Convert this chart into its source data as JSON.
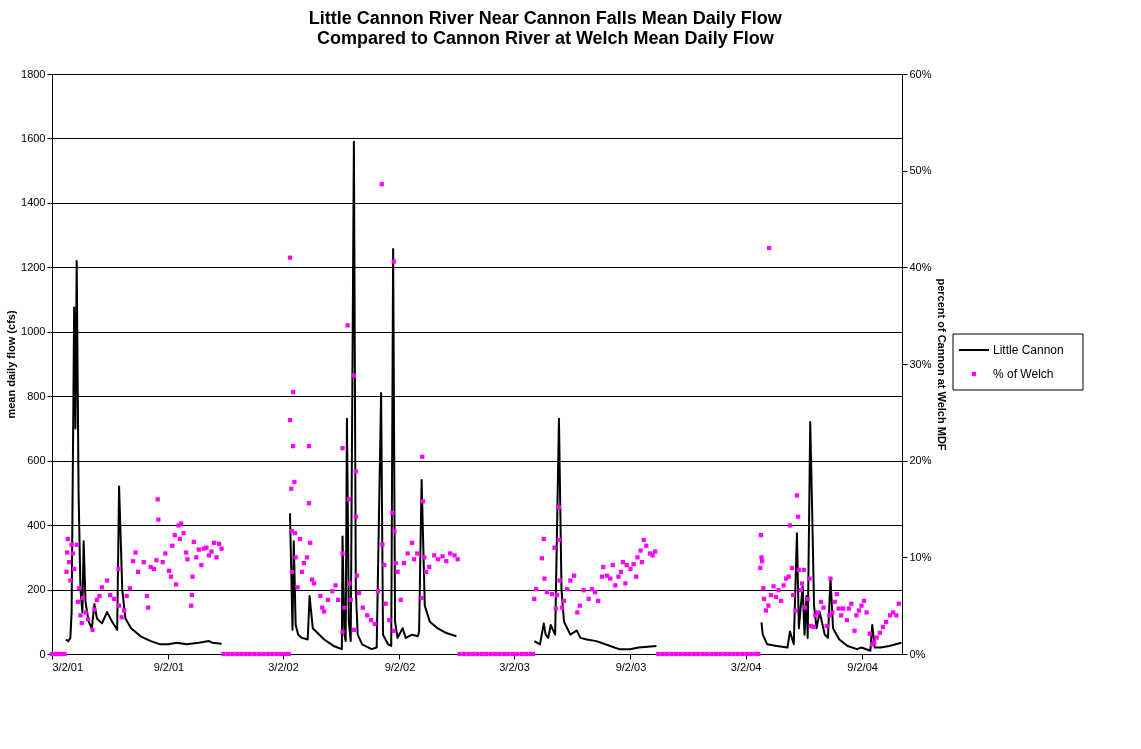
{
  "chart_data": {
    "type": "line",
    "title": "Little Cannon River Near Cannon Falls Mean Daily Flow\nCompared to Cannon River at Welch Mean Daily Flow",
    "ylabel": "mean daily flow (cfs)",
    "y2label": "percent of Cannon at Welch MDF",
    "xlim": [
      "2001-03-02",
      "2004-11-04"
    ],
    "xticks": [
      {
        "value": "2001-03-02",
        "label": "3/2/01"
      },
      {
        "value": "2001-09-02",
        "label": "9/2/01"
      },
      {
        "value": "2002-03-02",
        "label": "3/2/02"
      },
      {
        "value": "2002-09-02",
        "label": "9/2/02"
      },
      {
        "value": "2003-03-02",
        "label": "3/2/03"
      },
      {
        "value": "2003-09-02",
        "label": "9/2/03"
      },
      {
        "value": "2004-03-02",
        "label": "3/2/04"
      },
      {
        "value": "2004-09-02",
        "label": "9/2/04"
      }
    ],
    "ylim": [
      0,
      1800
    ],
    "yticks": [
      0,
      200,
      400,
      600,
      800,
      1000,
      1200,
      1400,
      1600,
      1800
    ],
    "y2lim": [
      0,
      60
    ],
    "y2ticks": [
      {
        "value": 0,
        "label": "0%"
      },
      {
        "value": 10,
        "label": "10%"
      },
      {
        "value": 20,
        "label": "20%"
      },
      {
        "value": 30,
        "label": "30%"
      },
      {
        "value": 40,
        "label": "40%"
      },
      {
        "value": 50,
        "label": "50%"
      },
      {
        "value": 60,
        "label": "60%"
      }
    ],
    "grid": "y",
    "legend": "right",
    "series": [
      {
        "name": "Little Cannon",
        "color": "#000000",
        "line_style": "solid",
        "x": [
          "2001-03-24",
          "2001-03-28",
          "2001-03-31",
          "2001-04-02",
          "2001-04-04",
          "2001-04-06",
          "2001-04-08",
          "2001-04-10",
          "2001-04-13",
          "2001-04-16",
          "2001-04-19",
          "2001-04-21",
          "2001-04-24",
          "2001-04-29",
          "2001-05-04",
          "2001-05-08",
          "2001-05-12",
          "2001-05-20",
          "2001-05-28",
          "2001-06-05",
          "2001-06-13",
          "2001-06-16",
          "2001-06-21",
          "2001-06-26",
          "2001-07-05",
          "2001-07-20",
          "2001-08-05",
          "2001-08-20",
          "2001-09-02",
          "2001-09-15",
          "2001-10-01",
          "2001-10-20",
          "2001-11-05",
          "2001-11-10",
          "2001-11-25",
          "2002-01-15",
          "2002-03-13",
          "2002-03-17",
          "2002-03-19",
          "2002-03-22",
          "2002-03-26",
          "2002-04-01",
          "2002-04-10",
          "2002-04-13",
          "2002-04-18",
          "2002-05-06",
          "2002-05-21",
          "2002-06-03",
          "2002-06-04",
          "2002-06-07",
          "2002-06-09",
          "2002-06-11",
          "2002-06-14",
          "2002-06-17",
          "2002-06-22",
          "2002-06-25",
          "2002-06-28",
          "2002-07-05",
          "2002-07-20",
          "2002-07-28",
          "2002-08-04",
          "2002-08-07",
          "2002-08-15",
          "2002-08-20",
          "2002-08-23",
          "2002-08-26",
          "2002-08-30",
          "2002-09-07",
          "2002-09-12",
          "2002-09-22",
          "2002-10-01",
          "2002-10-03",
          "2002-10-07",
          "2002-10-12",
          "2002-10-20",
          "2002-11-01",
          "2002-11-15",
          "2002-12-01",
          "2003-02-01",
          "2003-04-03",
          "2003-04-12",
          "2003-04-18",
          "2003-04-21",
          "2003-04-25",
          "2003-04-29",
          "2003-05-06",
          "2003-05-12",
          "2003-05-16",
          "2003-05-20",
          "2003-05-30",
          "2003-06-09",
          "2003-06-15",
          "2003-06-25",
          "2003-07-10",
          "2003-08-01",
          "2003-08-15",
          "2003-09-01",
          "2003-09-15",
          "2003-10-13",
          "2003-12-20",
          "2004-03-27",
          "2004-03-29",
          "2004-04-05",
          "2004-04-20",
          "2004-05-07",
          "2004-05-11",
          "2004-05-17",
          "2004-05-22",
          "2004-05-25",
          "2004-05-31",
          "2004-06-03",
          "2004-06-06",
          "2004-06-08",
          "2004-06-12",
          "2004-06-15",
          "2004-06-18",
          "2004-06-22",
          "2004-06-27",
          "2004-07-05",
          "2004-07-10",
          "2004-07-14",
          "2004-07-18",
          "2004-07-28",
          "2004-08-10",
          "2004-08-25",
          "2004-09-01",
          "2004-09-15",
          "2004-09-18",
          "2004-09-22",
          "2004-10-01",
          "2004-10-15",
          "2004-11-03"
        ],
        "values": [
          45,
          40,
          50,
          130,
          600,
          1075,
          700,
          1220,
          500,
          200,
          130,
          350,
          160,
          100,
          80,
          155,
          110,
          95,
          130,
          100,
          75,
          520,
          200,
          110,
          80,
          55,
          40,
          30,
          30,
          35,
          30,
          35,
          40,
          35,
          32,
          null,
          437,
          75,
          350,
          90,
          60,
          50,
          45,
          180,
          80,
          45,
          25,
          15,
          365,
          60,
          40,
          730,
          100,
          40,
          1590,
          200,
          60,
          30,
          15,
          20,
          810,
          60,
          30,
          25,
          1257,
          100,
          50,
          80,
          50,
          60,
          55,
          70,
          540,
          150,
          100,
          80,
          65,
          55,
          null,
          40,
          30,
          95,
          60,
          50,
          90,
          60,
          730,
          200,
          100,
          60,
          73,
          50,
          45,
          40,
          25,
          15,
          15,
          20,
          25,
          null,
          98,
          60,
          30,
          25,
          20,
          70,
          30,
          375,
          80,
          210,
          60,
          180,
          50,
          720,
          450,
          150,
          80,
          130,
          60,
          50,
          235,
          80,
          45,
          25,
          15,
          20,
          10,
          90,
          20,
          20,
          25,
          35
        ]
      },
      {
        "name": "% of Welch",
        "type": "scatter",
        "axis": "y2",
        "marker": "square",
        "color": "#ff00ff",
        "x": [
          "2001-03-02",
          "2001-03-06",
          "2001-03-10",
          "2001-03-14",
          "2001-03-18",
          "2001-03-22",
          "2001-03-25",
          "2001-03-26",
          "2001-03-27",
          "2001-03-29",
          "2001-03-31",
          "2001-04-02",
          "2001-04-04",
          "2001-04-06",
          "2001-04-10",
          "2001-04-12",
          "2001-04-14",
          "2001-04-16",
          "2001-04-18",
          "2001-04-20",
          "2001-04-24",
          "2001-04-28",
          "2001-05-05",
          "2001-05-08",
          "2001-05-12",
          "2001-05-16",
          "2001-05-20",
          "2001-05-28",
          "2001-06-02",
          "2001-06-08",
          "2001-06-15",
          "2001-06-16",
          "2001-06-20",
          "2001-06-24",
          "2001-06-28",
          "2001-07-03",
          "2001-07-08",
          "2001-07-12",
          "2001-07-16",
          "2001-07-25",
          "2001-07-30",
          "2001-08-01",
          "2001-08-05",
          "2001-08-10",
          "2001-08-14",
          "2001-08-16",
          "2001-08-17",
          "2001-08-24",
          "2001-08-28",
          "2001-09-03",
          "2001-09-06",
          "2001-09-08",
          "2001-09-12",
          "2001-09-14",
          "2001-09-18",
          "2001-09-20",
          "2001-09-22",
          "2001-09-26",
          "2001-09-30",
          "2001-10-02",
          "2001-10-08",
          "2001-10-09",
          "2001-10-10",
          "2001-10-12",
          "2001-10-16",
          "2001-10-20",
          "2001-10-24",
          "2001-10-28",
          "2001-11-01",
          "2001-11-05",
          "2001-11-09",
          "2001-11-13",
          "2001-11-17",
          "2001-11-21",
          "2001-11-25",
          "2001-11-28",
          "2001-12-05",
          "2001-12-12",
          "2001-12-19",
          "2001-12-26",
          "2002-01-02",
          "2002-01-09",
          "2002-01-16",
          "2002-01-23",
          "2002-01-30",
          "2002-02-06",
          "2002-02-13",
          "2002-02-20",
          "2002-02-27",
          "2002-03-06",
          "2002-03-11",
          "2002-03-13",
          "2002-03-13",
          "2002-03-15",
          "2002-03-16",
          "2002-03-16",
          "2002-03-18",
          "2002-03-18",
          "2002-03-20",
          "2002-03-21",
          "2002-03-22",
          "2002-03-25",
          "2002-03-29",
          "2002-04-01",
          "2002-04-04",
          "2002-04-09",
          "2002-04-12",
          "2002-04-12",
          "2002-04-14",
          "2002-04-17",
          "2002-04-20",
          "2002-04-30",
          "2002-05-03",
          "2002-05-06",
          "2002-05-12",
          "2002-05-19",
          "2002-05-24",
          "2002-05-28",
          "2002-06-04",
          "2002-06-04",
          "2002-06-04",
          "2002-06-07",
          "2002-06-12",
          "2002-06-14",
          "2002-06-15",
          "2002-06-17",
          "2002-06-22",
          "2002-06-22",
          "2002-06-25",
          "2002-06-25",
          "2002-06-27",
          "2002-06-30",
          "2002-07-06",
          "2002-07-13",
          "2002-07-19",
          "2002-07-25",
          "2002-07-30",
          "2002-08-05",
          "2002-08-06",
          "2002-08-09",
          "2002-08-11",
          "2002-08-17",
          "2002-08-22",
          "2002-08-24",
          "2002-08-24",
          "2002-08-25",
          "2002-08-27",
          "2002-08-30",
          "2002-09-04",
          "2002-09-09",
          "2002-09-15",
          "2002-09-22",
          "2002-09-25",
          "2002-09-30",
          "2002-10-07",
          "2002-10-08",
          "2002-10-09",
          "2002-10-11",
          "2002-10-14",
          "2002-10-19",
          "2002-10-27",
          "2002-11-02",
          "2002-11-09",
          "2002-11-15",
          "2002-11-21",
          "2002-11-28",
          "2002-12-03",
          "2002-12-06",
          "2002-12-13",
          "2002-12-20",
          "2002-12-27",
          "2003-01-03",
          "2003-01-10",
          "2003-01-17",
          "2003-01-24",
          "2003-01-31",
          "2003-02-07",
          "2003-02-14",
          "2003-02-21",
          "2003-02-28",
          "2003-03-07",
          "2003-03-14",
          "2003-03-21",
          "2003-03-28",
          "2003-04-01",
          "2003-04-03",
          "2003-04-06",
          "2003-04-15",
          "2003-04-18",
          "2003-04-19",
          "2003-04-23",
          "2003-05-01",
          "2003-05-05",
          "2003-05-07",
          "2003-05-09",
          "2003-05-12",
          "2003-05-12",
          "2003-05-13",
          "2003-05-17",
          "2003-05-20",
          "2003-05-25",
          "2003-05-30",
          "2003-06-05",
          "2003-06-10",
          "2003-06-14",
          "2003-06-20",
          "2003-06-28",
          "2003-07-03",
          "2003-07-08",
          "2003-07-13",
          "2003-07-19",
          "2003-07-21",
          "2003-07-27",
          "2003-08-01",
          "2003-08-05",
          "2003-08-09",
          "2003-08-14",
          "2003-08-18",
          "2003-08-21",
          "2003-08-25",
          "2003-08-27",
          "2003-09-02",
          "2003-09-07",
          "2003-09-11",
          "2003-09-13",
          "2003-09-18",
          "2003-09-20",
          "2003-09-23",
          "2003-09-27",
          "2003-10-03",
          "2003-10-07",
          "2003-10-11",
          "2003-10-16",
          "2003-10-23",
          "2003-10-30",
          "2003-11-06",
          "2003-11-13",
          "2003-11-20",
          "2003-11-27",
          "2003-12-04",
          "2003-12-11",
          "2003-12-18",
          "2003-12-25",
          "2004-01-01",
          "2004-01-08",
          "2004-01-15",
          "2004-01-22",
          "2004-01-29",
          "2004-02-05",
          "2004-02-12",
          "2004-02-19",
          "2004-02-26",
          "2004-03-04",
          "2004-03-11",
          "2004-03-18",
          "2004-03-22",
          "2004-03-25",
          "2004-03-26",
          "2004-03-27",
          "2004-03-28",
          "2004-03-30",
          "2004-03-31",
          "2004-04-03",
          "2004-04-07",
          "2004-04-08",
          "2004-04-11",
          "2004-04-15",
          "2004-04-19",
          "2004-04-23",
          "2004-04-27",
          "2004-05-01",
          "2004-05-05",
          "2004-05-09",
          "2004-05-11",
          "2004-05-14",
          "2004-05-16",
          "2004-05-20",
          "2004-05-22",
          "2004-05-24",
          "2004-05-25",
          "2004-05-28",
          "2004-05-30",
          "2004-06-02",
          "2004-06-04",
          "2004-06-08",
          "2004-06-11",
          "2004-06-13",
          "2004-06-17",
          "2004-06-20",
          "2004-06-24",
          "2004-06-29",
          "2004-07-03",
          "2004-07-08",
          "2004-07-12",
          "2004-07-14",
          "2004-07-17",
          "2004-07-21",
          "2004-07-24",
          "2004-07-27",
          "2004-07-31",
          "2004-08-03",
          "2004-08-09",
          "2004-08-12",
          "2004-08-16",
          "2004-08-21",
          "2004-08-24",
          "2004-08-28",
          "2004-09-01",
          "2004-09-05",
          "2004-09-09",
          "2004-09-14",
          "2004-09-18",
          "2004-09-21",
          "2004-09-25",
          "2004-09-30",
          "2004-10-05",
          "2004-10-10",
          "2004-10-16",
          "2004-10-21",
          "2004-10-26",
          "2004-10-30"
        ],
        "values": [
          0,
          0,
          0,
          0,
          0,
          0,
          8.5,
          10.5,
          11.9,
          9.5,
          7.6,
          11.3,
          10.4,
          8.8,
          11.3,
          5.4,
          6.8,
          4.0,
          3.2,
          5.8,
          4.3,
          3.6,
          2.5,
          4.6,
          5.6,
          6.0,
          6.9,
          7.6,
          6.1,
          5.7,
          8.8,
          5.0,
          3.8,
          4.5,
          6.0,
          6.8,
          9.6,
          10.5,
          8.5,
          9.5,
          6.0,
          4.8,
          9.0,
          8.8,
          9.7,
          16.0,
          13.9,
          9.5,
          10.4,
          8.6,
          8.0,
          11.2,
          12.3,
          7.2,
          13.3,
          11.9,
          13.5,
          12.5,
          10.5,
          9.8,
          5.0,
          6.1,
          8.0,
          11.6,
          10.0,
          10.8,
          9.2,
          10.9,
          11.0,
          10.2,
          10.6,
          11.5,
          10.0,
          11.4,
          10.9,
          0,
          0,
          0,
          0,
          0,
          0,
          0,
          0,
          0,
          0,
          0,
          0,
          0,
          0,
          0,
          0,
          41.0,
          24.2,
          17.1,
          12.7,
          8.5,
          27.1,
          21.5,
          17.8,
          12.5,
          10.0,
          6.9,
          11.9,
          8.5,
          9.4,
          10.0,
          21.5,
          15.6,
          11.5,
          7.7,
          7.3,
          6.0,
          4.8,
          4.4,
          5.6,
          6.5,
          7.1,
          5.6,
          21.3,
          10.4,
          2.3,
          4.8,
          34.0,
          16.0,
          7.3,
          5.6,
          2.5,
          28.8,
          18.9,
          14.2,
          8.1,
          6.3,
          4.8,
          4.0,
          3.5,
          3.1,
          6.5,
          48.6,
          11.3,
          9.2,
          5.2,
          3.5,
          14.6,
          40.6,
          2.4,
          12.7,
          9.4,
          8.5,
          5.6,
          9.4,
          10.4,
          11.5,
          9.8,
          10.4,
          5.8,
          20.4,
          15.8,
          10.0,
          8.5,
          9.0,
          10.2,
          9.8,
          10.1,
          9.6,
          10.4,
          10.2,
          9.8,
          0,
          0,
          0,
          0,
          0,
          0,
          0,
          0,
          0,
          0,
          0,
          0,
          0,
          0,
          0,
          0,
          0,
          0,
          5.7,
          6.7,
          9.9,
          11.9,
          7.8,
          6.4,
          6.2,
          11.0,
          4.7,
          6.1,
          15.2,
          11.8,
          7.6,
          4.8,
          5.5,
          6.7,
          7.6,
          8.1,
          4.3,
          5.0,
          6.6,
          5.7,
          6.7,
          6.4,
          5.5,
          8.0,
          9.0,
          8.1,
          7.8,
          9.2,
          7.1,
          8.0,
          8.5,
          9.5,
          7.3,
          9.2,
          8.8,
          9.3,
          8.0,
          10.0,
          10.7,
          9.5,
          11.8,
          11.2,
          10.4,
          10.2,
          10.6,
          0,
          0,
          0,
          0,
          0,
          0,
          0,
          0,
          0,
          0,
          0,
          0,
          0,
          0,
          0,
          0,
          0,
          0,
          0,
          0,
          0,
          0,
          0,
          0,
          8.9,
          12.3,
          10.0,
          9.6,
          6.8,
          5.7,
          4.5,
          5.0,
          42.0,
          6.1,
          7.0,
          5.9,
          6.6,
          5.5,
          7.1,
          7.8,
          8.0,
          13.3,
          8.9,
          6.1,
          4.5,
          16.4,
          14.2,
          8.7,
          6.6,
          7.3,
          8.7,
          4.8,
          5.7,
          7.8,
          2.9,
          2.8,
          4.0,
          4.3,
          5.4,
          4.8,
          2.9,
          4.0,
          7.8,
          4.3,
          5.4,
          6.2,
          4.7,
          4.0,
          4.7,
          3.5,
          4.7,
          5.2,
          2.4,
          4.0,
          4.5,
          5.0,
          5.5,
          4.3,
          2.1,
          1.0,
          1.2,
          1.7,
          2.2,
          2.8,
          3.3,
          4.0,
          4.3,
          4.0,
          5.2
        ]
      }
    ]
  }
}
